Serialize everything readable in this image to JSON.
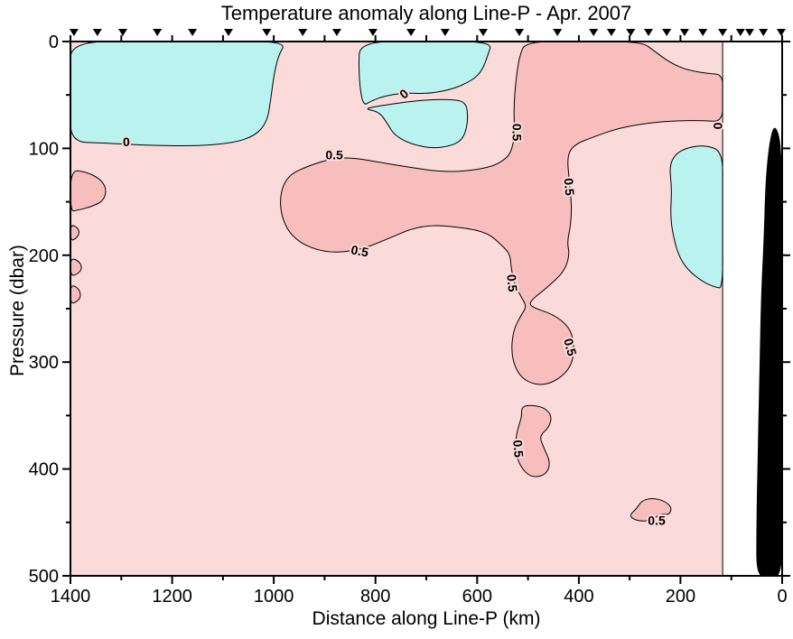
{
  "chart_data": {
    "type": "filled_contour",
    "title": "Temperature anomaly along Line-P - Apr. 2007",
    "xlabel": "Distance along Line-P (km)",
    "ylabel": "Pressure (dbar)",
    "x_axis": {
      "min": 0,
      "max": 1400,
      "reversed": true,
      "major_tick_step": 200,
      "minor_tick_step": 100,
      "tick_values": [
        1400,
        1200,
        1000,
        800,
        600,
        400,
        200,
        0
      ],
      "tick_labels": [
        "1400",
        "1200",
        "1000",
        "800",
        "600",
        "400",
        "200",
        "0"
      ]
    },
    "y_axis": {
      "min": 0,
      "max": 500,
      "inverted": true,
      "major_tick_step": 100,
      "minor_tick_step": 50,
      "tick_values": [
        0,
        100,
        200,
        300,
        400,
        500
      ],
      "tick_labels": [
        "0",
        "100",
        "200",
        "300",
        "400",
        "500"
      ]
    },
    "contour_levels": [
      0,
      0.5
    ],
    "band_colors": {
      "below_0": "#B9F2EF",
      "between_0_and_0p5": "#FBDADA",
      "above_0p5": "#F8BEBE"
    },
    "line_color": "#000000",
    "no_data_color": "#FFFFFF",
    "bathymetry_color": "#000000",
    "data_extent_km": [
      117,
      1400
    ],
    "station_positions_km": [
      1393,
      1347,
      1297,
      1229,
      1160,
      1089,
      1014,
      943,
      876,
      805,
      730,
      663,
      588,
      517,
      442,
      371,
      336,
      298,
      263,
      227,
      192,
      156,
      117,
      82,
      64,
      37,
      2
    ],
    "regions": [
      {
        "name": "negative-anomaly-top-left",
        "band": "below_0",
        "points": [
          [
            1400,
            0
          ],
          [
            1250,
            0
          ],
          [
            1100,
            0
          ],
          [
            975,
            0
          ],
          [
            991,
            13
          ],
          [
            1000,
            32
          ],
          [
            1006,
            54
          ],
          [
            1013,
            75
          ],
          [
            1036,
            88
          ],
          [
            1080,
            95
          ],
          [
            1156,
            98
          ],
          [
            1254,
            97
          ],
          [
            1334,
            95
          ],
          [
            1400,
            94
          ],
          [
            1400,
            60
          ],
          [
            1400,
            30
          ]
        ]
      },
      {
        "name": "negative-anomaly-top-center",
        "band": "below_0",
        "points": [
          [
            831,
            0
          ],
          [
            700,
            0
          ],
          [
            570,
            0
          ],
          [
            579,
            13
          ],
          [
            590,
            27
          ],
          [
            608,
            36
          ],
          [
            650,
            45
          ],
          [
            700,
            49
          ],
          [
            743,
            48
          ],
          [
            783,
            51
          ],
          [
            810,
            56
          ],
          [
            823,
            60
          ],
          [
            830,
            46
          ],
          [
            833,
            24
          ]
        ]
      },
      {
        "name": "negative-anomaly-center-scoop",
        "band": "below_0",
        "points": [
          [
            821,
            63
          ],
          [
            792,
            66
          ],
          [
            775,
            78
          ],
          [
            762,
            88
          ],
          [
            730,
            96
          ],
          [
            689,
            100
          ],
          [
            654,
            98
          ],
          [
            632,
            93
          ],
          [
            622,
            84
          ],
          [
            618,
            71
          ],
          [
            622,
            56
          ],
          [
            659,
            54
          ],
          [
            712,
            55
          ],
          [
            760,
            58
          ],
          [
            801,
            61
          ]
        ]
      },
      {
        "name": "negative-anomaly-nearshore",
        "band": "below_0",
        "points": [
          [
            117,
            103
          ],
          [
            150,
            97
          ],
          [
            185,
            99
          ],
          [
            210,
            105
          ],
          [
            222,
            117
          ],
          [
            217,
            138
          ],
          [
            220,
            164
          ],
          [
            213,
            185
          ],
          [
            202,
            202
          ],
          [
            185,
            214
          ],
          [
            156,
            225
          ],
          [
            131,
            230
          ],
          [
            117,
            231
          ],
          [
            117,
            180
          ],
          [
            117,
            140
          ]
        ]
      },
      {
        "name": "warm-core-main",
        "band": "above_0p5",
        "points": [
          [
            505,
            0
          ],
          [
            400,
            0
          ],
          [
            277,
            0
          ],
          [
            251,
            9
          ],
          [
            220,
            20
          ],
          [
            185,
            27
          ],
          [
            144,
            30
          ],
          [
            117,
            31
          ],
          [
            117,
            50
          ],
          [
            117,
            75
          ],
          [
            153,
            74
          ],
          [
            206,
            74
          ],
          [
            259,
            76
          ],
          [
            322,
            81
          ],
          [
            375,
            90
          ],
          [
            407,
            96
          ],
          [
            423,
            106
          ],
          [
            419,
            130
          ],
          [
            414,
            154
          ],
          [
            416,
            172
          ],
          [
            423,
            188
          ],
          [
            418,
            199
          ],
          [
            428,
            215
          ],
          [
            464,
            231
          ],
          [
            494,
            242
          ],
          [
            497,
            248
          ],
          [
            451,
            255
          ],
          [
            419,
            267
          ],
          [
            409,
            282
          ],
          [
            412,
            301
          ],
          [
            433,
            314
          ],
          [
            467,
            322
          ],
          [
            501,
            319
          ],
          [
            522,
            309
          ],
          [
            533,
            292
          ],
          [
            529,
            270
          ],
          [
            512,
            255
          ],
          [
            503,
            248
          ],
          [
            512,
            240
          ],
          [
            526,
            228
          ],
          [
            533,
            213
          ],
          [
            535,
            199
          ],
          [
            551,
            191
          ],
          [
            579,
            179
          ],
          [
            627,
            174
          ],
          [
            709,
            171
          ],
          [
            787,
            187
          ],
          [
            831,
            195
          ],
          [
            890,
            198
          ],
          [
            940,
            191
          ],
          [
            970,
            179
          ],
          [
            984,
            164
          ],
          [
            988,
            149
          ],
          [
            982,
            134
          ],
          [
            966,
            124
          ],
          [
            940,
            118
          ],
          [
            899,
            111
          ],
          [
            855,
            108
          ],
          [
            792,
            113
          ],
          [
            730,
            118
          ],
          [
            668,
            122
          ],
          [
            615,
            121
          ],
          [
            570,
            117
          ],
          [
            544,
            110
          ],
          [
            533,
            103
          ],
          [
            526,
            88
          ],
          [
            528,
            63
          ],
          [
            524,
            37
          ],
          [
            517,
            14
          ]
        ]
      },
      {
        "name": "warm-left-lobe",
        "band": "above_0p5",
        "points": [
          [
            1400,
            120
          ],
          [
            1370,
            122
          ],
          [
            1343,
            128
          ],
          [
            1329,
            137
          ],
          [
            1334,
            149
          ],
          [
            1361,
            155
          ],
          [
            1388,
            158
          ],
          [
            1400,
            159
          ]
        ]
      },
      {
        "name": "warm-left-bump-1",
        "band": "above_0p5",
        "points": [
          [
            1400,
            171
          ],
          [
            1386,
            174
          ],
          [
            1382,
            179
          ],
          [
            1388,
            184
          ],
          [
            1400,
            187
          ]
        ]
      },
      {
        "name": "warm-left-bump-2",
        "band": "above_0p5",
        "points": [
          [
            1400,
            202
          ],
          [
            1382,
            206
          ],
          [
            1377,
            212
          ],
          [
            1384,
            217
          ],
          [
            1400,
            220
          ]
        ]
      },
      {
        "name": "warm-left-bump-3",
        "band": "above_0p5",
        "points": [
          [
            1400,
            227
          ],
          [
            1384,
            231
          ],
          [
            1379,
            238
          ],
          [
            1386,
            243
          ],
          [
            1400,
            246
          ]
        ]
      },
      {
        "name": "warm-deep-blob",
        "band": "above_0p5",
        "points": [
          [
            501,
            340
          ],
          [
            469,
            342
          ],
          [
            453,
            350
          ],
          [
            458,
            361
          ],
          [
            478,
            369
          ],
          [
            469,
            380
          ],
          [
            455,
            395
          ],
          [
            466,
            406
          ],
          [
            494,
            408
          ],
          [
            515,
            398
          ],
          [
            526,
            382
          ],
          [
            522,
            365
          ],
          [
            512,
            351
          ],
          [
            513,
            343
          ]
        ]
      },
      {
        "name": "warm-deep-small-blob",
        "band": "above_0p5",
        "points": [
          [
            300,
            443
          ],
          [
            286,
            437
          ],
          [
            277,
            430
          ],
          [
            256,
            427
          ],
          [
            231,
            430
          ],
          [
            217,
            436
          ],
          [
            222,
            443
          ],
          [
            240,
            442
          ],
          [
            256,
            448
          ],
          [
            277,
            449
          ],
          [
            293,
            447
          ]
        ]
      }
    ],
    "bathymetry_points": [
      [
        16,
        78
      ],
      [
        25,
        96
      ],
      [
        32,
        130
      ],
      [
        35,
        181
      ],
      [
        41,
        240
      ],
      [
        44,
        316
      ],
      [
        48,
        400
      ],
      [
        50,
        460
      ],
      [
        50,
        500
      ],
      [
        25,
        500
      ],
      [
        0,
        500
      ],
      [
        0,
        430
      ],
      [
        0,
        350
      ],
      [
        0,
        270
      ],
      [
        0,
        190
      ],
      [
        0,
        130
      ],
      [
        3,
        105
      ],
      [
        6,
        88
      ]
    ],
    "contour_labels": [
      {
        "text": "0",
        "km": 1290,
        "dbar": 94,
        "rotate": 0
      },
      {
        "text": "0",
        "km": 744,
        "dbar": 49,
        "rotate": -40
      },
      {
        "text": "0.5",
        "km": 881,
        "dbar": 106,
        "rotate": 0
      },
      {
        "text": "0.5",
        "km": 522,
        "dbar": 85,
        "rotate": 90
      },
      {
        "text": "0.5",
        "km": 419,
        "dbar": 136,
        "rotate": 85
      },
      {
        "text": "0.5",
        "km": 831,
        "dbar": 196,
        "rotate": 10
      },
      {
        "text": "0.5",
        "km": 531,
        "dbar": 226,
        "rotate": 85
      },
      {
        "text": "0.5",
        "km": 417,
        "dbar": 286,
        "rotate": 75
      },
      {
        "text": "0.5",
        "km": 519,
        "dbar": 381,
        "rotate": 85
      },
      {
        "text": "0.5",
        "km": 247,
        "dbar": 448,
        "rotate": 0
      },
      {
        "text": "0",
        "km": 126,
        "dbar": 79,
        "rotate": 90
      }
    ]
  }
}
